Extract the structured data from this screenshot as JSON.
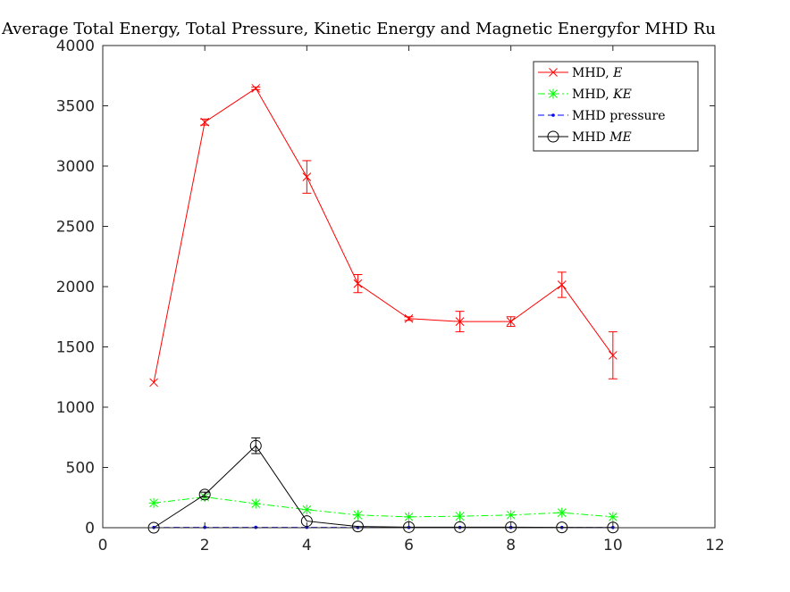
{
  "chart_data": {
    "type": "line",
    "title": "Average Total Energy, Total Pressure, Kinetic Energy and Magnetic Energyfor MHD Ru",
    "xlabel": "",
    "ylabel": "",
    "xlim": [
      0,
      12
    ],
    "ylim": [
      0,
      4000
    ],
    "xticks": [
      "0",
      "2",
      "4",
      "6",
      "8",
      "10",
      "12"
    ],
    "yticks": [
      "0",
      "500",
      "1000",
      "1500",
      "2000",
      "2500",
      "3000",
      "3500",
      "4000"
    ],
    "grid": false,
    "legend_position": "top-right",
    "x": [
      1,
      2,
      3,
      4,
      5,
      6,
      7,
      8,
      9,
      10
    ],
    "series": [
      {
        "name": "MHD, E",
        "legend_prefix": "MHD, ",
        "legend_math": "E",
        "color": "#ff0000",
        "marker": "x",
        "line": "solid",
        "values": [
          1205,
          3365,
          3645,
          2910,
          2025,
          1735,
          1710,
          1710,
          2015,
          1430
        ],
        "errors": [
          0,
          25,
          10,
          135,
          75,
          15,
          85,
          40,
          105,
          195
        ]
      },
      {
        "name": "MHD, KE",
        "legend_prefix": "MHD, ",
        "legend_math": "KE",
        "color": "#00ff00",
        "marker": "asterisk",
        "line": "dashdot",
        "values": [
          205,
          255,
          200,
          150,
          105,
          90,
          95,
          105,
          125,
          90
        ],
        "errors": [
          0,
          0,
          0,
          0,
          0,
          0,
          0,
          0,
          0,
          0
        ]
      },
      {
        "name": "MHD pressure",
        "legend_prefix": "MHD pressure",
        "legend_math": "",
        "color": "#0000ff",
        "marker": "dot",
        "line": "dashed",
        "values": [
          2,
          3,
          3,
          3,
          2,
          2,
          2,
          2,
          2,
          2
        ],
        "errors": [
          0,
          0,
          0,
          0,
          0,
          0,
          0,
          0,
          0,
          0
        ]
      },
      {
        "name": "MHD ME",
        "legend_prefix": "MHD ",
        "legend_math": "ME",
        "color": "#000000",
        "marker": "circle",
        "line": "solid",
        "values": [
          0,
          275,
          680,
          55,
          10,
          5,
          5,
          5,
          3,
          2
        ],
        "errors": [
          0,
          20,
          65,
          0,
          0,
          0,
          0,
          0,
          0,
          0
        ]
      }
    ]
  }
}
